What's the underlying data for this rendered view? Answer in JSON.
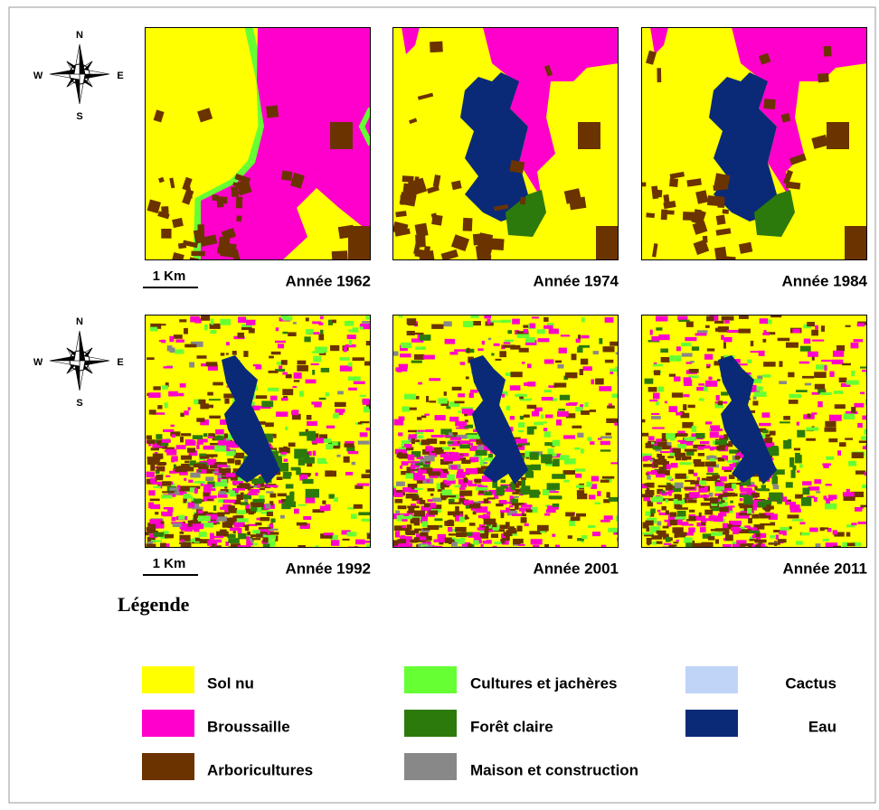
{
  "rows": [
    {
      "compass": {
        "n": "N",
        "w": "W",
        "e": "E",
        "s": "S"
      },
      "scale": "1 Km",
      "panels": [
        "Année 1962",
        "Année 1974",
        "Année 1984"
      ]
    },
    {
      "compass": {
        "n": "N",
        "w": "W",
        "e": "E",
        "s": "S"
      },
      "scale": "1 Km",
      "panels": [
        "Année 1992",
        "Année 2001",
        "Année 2011"
      ]
    }
  ],
  "legend": {
    "title": "Légende",
    "items": [
      {
        "label": "Sol nu",
        "color": "#ffff00"
      },
      {
        "label": "Broussaille",
        "color": "#ff00cc"
      },
      {
        "label": "Arboricultures",
        "color": "#6b3300"
      },
      {
        "label": "Cultures et jachères",
        "color": "#66ff33"
      },
      {
        "label": "Forêt claire",
        "color": "#2d7a0c"
      },
      {
        "label": "Maison et construction",
        "color": "#888888"
      },
      {
        "label": "Cactus",
        "color": "#c0d4f8"
      },
      {
        "label": "Eau",
        "color": "#0a2a78"
      }
    ]
  }
}
